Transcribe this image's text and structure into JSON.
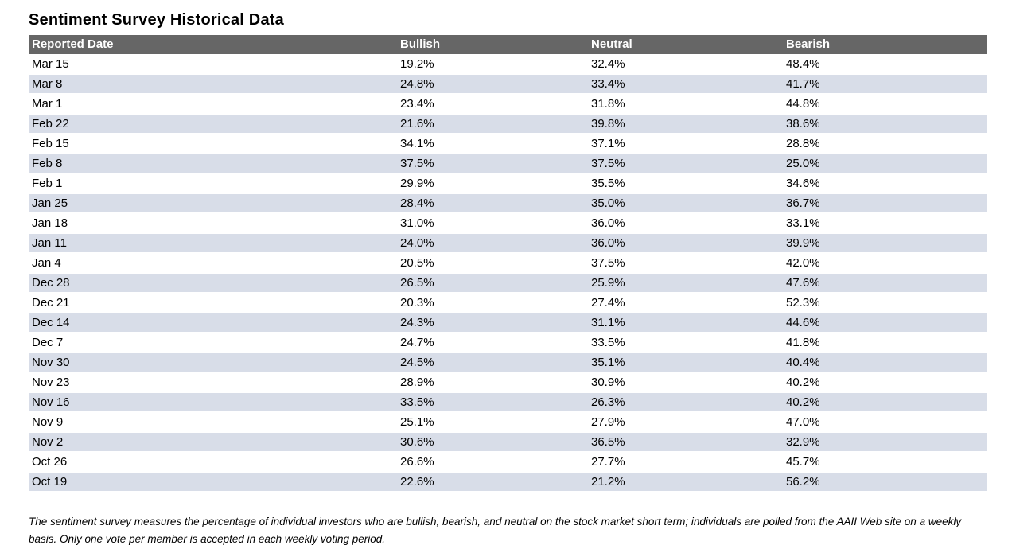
{
  "page": {
    "title": "Sentiment Survey Historical Data",
    "footnote": "The sentiment survey measures the percentage of individual investors who are bullish, bearish, and neutral on the stock market short term; individuals are polled from the AAII Web site on a weekly basis. Only one vote per member is accepted in each weekly voting period."
  },
  "colors": {
    "header_bg": "#666666",
    "header_text": "#ffffff",
    "row_stripe": "#d8dde8",
    "row_plain": "#ffffff"
  },
  "table": {
    "columns": [
      "Reported Date",
      "Bullish",
      "Neutral",
      "Bearish"
    ],
    "rows": [
      {
        "date": "Mar 15",
        "bullish": "19.2%",
        "neutral": "32.4%",
        "bearish": "48.4%"
      },
      {
        "date": "Mar 8",
        "bullish": "24.8%",
        "neutral": "33.4%",
        "bearish": "41.7%"
      },
      {
        "date": "Mar 1",
        "bullish": "23.4%",
        "neutral": "31.8%",
        "bearish": "44.8%"
      },
      {
        "date": "Feb 22",
        "bullish": "21.6%",
        "neutral": "39.8%",
        "bearish": "38.6%"
      },
      {
        "date": "Feb 15",
        "bullish": "34.1%",
        "neutral": "37.1%",
        "bearish": "28.8%"
      },
      {
        "date": "Feb 8",
        "bullish": "37.5%",
        "neutral": "37.5%",
        "bearish": "25.0%"
      },
      {
        "date": "Feb 1",
        "bullish": "29.9%",
        "neutral": "35.5%",
        "bearish": "34.6%"
      },
      {
        "date": "Jan 25",
        "bullish": "28.4%",
        "neutral": "35.0%",
        "bearish": "36.7%"
      },
      {
        "date": "Jan 18",
        "bullish": "31.0%",
        "neutral": "36.0%",
        "bearish": "33.1%"
      },
      {
        "date": "Jan 11",
        "bullish": "24.0%",
        "neutral": "36.0%",
        "bearish": "39.9%"
      },
      {
        "date": "Jan 4",
        "bullish": "20.5%",
        "neutral": "37.5%",
        "bearish": "42.0%"
      },
      {
        "date": "Dec 28",
        "bullish": "26.5%",
        "neutral": "25.9%",
        "bearish": "47.6%"
      },
      {
        "date": "Dec 21",
        "bullish": "20.3%",
        "neutral": "27.4%",
        "bearish": "52.3%"
      },
      {
        "date": "Dec 14",
        "bullish": "24.3%",
        "neutral": "31.1%",
        "bearish": "44.6%"
      },
      {
        "date": "Dec 7",
        "bullish": "24.7%",
        "neutral": "33.5%",
        "bearish": "41.8%"
      },
      {
        "date": "Nov 30",
        "bullish": "24.5%",
        "neutral": "35.1%",
        "bearish": "40.4%"
      },
      {
        "date": "Nov 23",
        "bullish": "28.9%",
        "neutral": "30.9%",
        "bearish": "40.2%"
      },
      {
        "date": "Nov 16",
        "bullish": "33.5%",
        "neutral": "26.3%",
        "bearish": "40.2%"
      },
      {
        "date": "Nov 9",
        "bullish": "25.1%",
        "neutral": "27.9%",
        "bearish": "47.0%"
      },
      {
        "date": "Nov 2",
        "bullish": "30.6%",
        "neutral": "36.5%",
        "bearish": "32.9%"
      },
      {
        "date": "Oct 26",
        "bullish": "26.6%",
        "neutral": "27.7%",
        "bearish": "45.7%"
      },
      {
        "date": "Oct 19",
        "bullish": "22.6%",
        "neutral": "21.2%",
        "bearish": "56.2%"
      }
    ]
  },
  "chart_data": {
    "type": "table",
    "title": "Sentiment Survey Historical Data",
    "columns": [
      "Reported Date",
      "Bullish",
      "Neutral",
      "Bearish"
    ],
    "rows": [
      [
        "Mar 15",
        19.2,
        32.4,
        48.4
      ],
      [
        "Mar 8",
        24.8,
        33.4,
        41.7
      ],
      [
        "Mar 1",
        23.4,
        31.8,
        44.8
      ],
      [
        "Feb 22",
        21.6,
        39.8,
        38.6
      ],
      [
        "Feb 15",
        34.1,
        37.1,
        28.8
      ],
      [
        "Feb 8",
        37.5,
        37.5,
        25.0
      ],
      [
        "Feb 1",
        29.9,
        35.5,
        34.6
      ],
      [
        "Jan 25",
        28.4,
        35.0,
        36.7
      ],
      [
        "Jan 18",
        31.0,
        36.0,
        33.1
      ],
      [
        "Jan 11",
        24.0,
        36.0,
        39.9
      ],
      [
        "Jan 4",
        20.5,
        37.5,
        42.0
      ],
      [
        "Dec 28",
        26.5,
        25.9,
        47.6
      ],
      [
        "Dec 21",
        20.3,
        27.4,
        52.3
      ],
      [
        "Dec 14",
        24.3,
        31.1,
        44.6
      ],
      [
        "Dec 7",
        24.7,
        33.5,
        41.8
      ],
      [
        "Nov 30",
        24.5,
        35.1,
        40.4
      ],
      [
        "Nov 23",
        28.9,
        30.9,
        40.2
      ],
      [
        "Nov 16",
        33.5,
        26.3,
        40.2
      ],
      [
        "Nov 9",
        25.1,
        27.9,
        47.0
      ],
      [
        "Nov 2",
        30.6,
        36.5,
        32.9
      ],
      [
        "Oct 26",
        26.6,
        27.7,
        45.7
      ],
      [
        "Oct 19",
        22.6,
        21.2,
        56.2
      ]
    ]
  }
}
